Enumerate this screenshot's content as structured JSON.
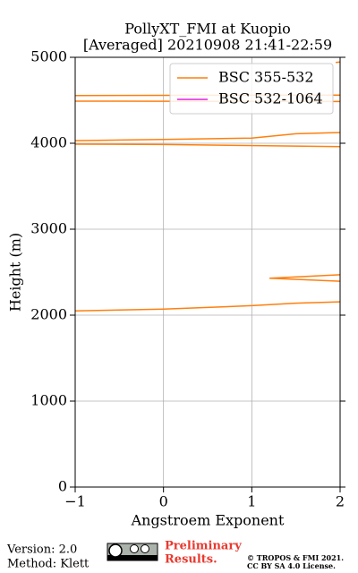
{
  "chart_data": {
    "type": "line",
    "title": "PollyXT_FMI at Kuopio",
    "subtitle": "[Averaged] 20210908 21:41-22:59",
    "x_label": "Angstroem Exponent",
    "y_label": "Height (m)",
    "xlim": [
      -1,
      2
    ],
    "xticks": [
      {
        "value": -1,
        "label": "−1"
      },
      0,
      1,
      2
    ],
    "ylim": [
      0,
      5000
    ],
    "yticks": [
      0,
      1000,
      2000,
      3000,
      4000,
      5000
    ],
    "grid": true,
    "legend": "upper right",
    "series": [
      {
        "name": "BSC 355-532",
        "color": "#ff7f0e",
        "x": [
          -1,
          0,
          1,
          1.5,
          2,
          null,
          2,
          1.2,
          2,
          null,
          2,
          0,
          -1,
          null,
          -1,
          0,
          1,
          1.5,
          2,
          null,
          -1,
          2,
          null,
          -1,
          2,
          null,
          1.95,
          2
        ],
        "values": [
          2050,
          2070,
          2110,
          2140,
          2155,
          null,
          2470,
          2430,
          2395,
          null,
          3960,
          3985,
          3990,
          null,
          4030,
          4045,
          4060,
          4110,
          4125,
          null,
          4490,
          4485,
          null,
          4555,
          4560,
          null,
          4940,
          4945
        ]
      },
      {
        "name": "BSC 532-1064",
        "color": "#e020e0",
        "x": [],
        "values": []
      }
    ],
    "footer": {
      "version": "Version: 2.0",
      "method": "Method: Klett",
      "preliminary": "Preliminary",
      "results": "Results.",
      "copyright": "© TROPOS & FMI 2021.",
      "license": "CC BY SA 4.0 License."
    }
  }
}
